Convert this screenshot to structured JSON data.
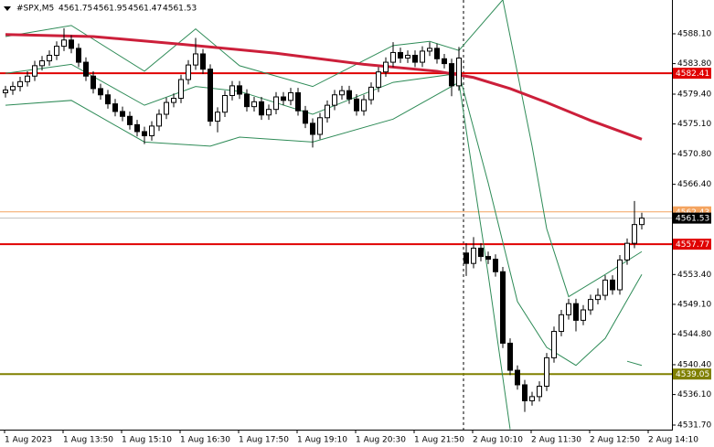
{
  "chart_data": {
    "type": "candlestick",
    "header": {
      "symbol": "#SPX,M5",
      "ohlc": [
        4561.75,
        4561.95,
        4561.47,
        4561.53
      ]
    },
    "ylim": [
      4531.04,
      4592.97
    ],
    "yticks": [
      {
        "value": 4588.1,
        "label": "4588.10"
      },
      {
        "value": 4583.8,
        "label": "4583.80"
      },
      {
        "value": 4579.4,
        "label": "4579.40"
      },
      {
        "value": 4575.1,
        "label": "4575.10"
      },
      {
        "value": 4570.8,
        "label": "4570.80"
      },
      {
        "value": 4566.4,
        "label": "4566.40"
      },
      {
        "value": 4553.4,
        "label": "4553.40"
      },
      {
        "value": 4549.1,
        "label": "4549.10"
      },
      {
        "value": 4544.8,
        "label": "4544.80"
      },
      {
        "value": 4540.4,
        "label": "4540.40"
      },
      {
        "value": 4536.1,
        "label": "4536.10"
      },
      {
        "value": 4531.7,
        "label": "4531.70"
      }
    ],
    "x_labels": [
      "1 Aug 2023",
      "1 Aug 13:50",
      "1 Aug 15:10",
      "1 Aug 16:30",
      "1 Aug 17:50",
      "1 Aug 19:10",
      "1 Aug 20:30",
      "1 Aug 21:50",
      "2 Aug 10:10",
      "2 Aug 11:30",
      "2 Aug 12:50",
      "2 Aug 14:10"
    ],
    "up_color": "#ffffff",
    "down_color": "#000000",
    "outline_color": "#000000",
    "candles": [
      [
        4579.6,
        4580.6,
        4578.9,
        4580.0
      ],
      [
        4580.0,
        4581.2,
        4579.3,
        4580.5
      ],
      [
        4580.5,
        4581.9,
        4579.8,
        4581.2
      ],
      [
        4581.2,
        4582.7,
        4580.5,
        4582.0
      ],
      [
        4582.0,
        4584.2,
        4581.3,
        4583.5
      ],
      [
        4583.5,
        4584.9,
        4582.8,
        4584.2
      ],
      [
        4584.2,
        4585.7,
        4583.5,
        4585.0
      ],
      [
        4585.0,
        4587.0,
        4584.3,
        4586.3
      ],
      [
        4586.3,
        4588.9,
        4585.6,
        4587.2
      ],
      [
        4587.2,
        4587.9,
        4585.3,
        4586.0
      ],
      [
        4586.0,
        4586.7,
        4583.3,
        4584.0
      ],
      [
        4584.0,
        4584.7,
        4581.3,
        4582.0
      ],
      [
        4582.0,
        4582.7,
        4579.5,
        4580.2
      ],
      [
        4580.2,
        4580.9,
        4578.6,
        4579.3
      ],
      [
        4579.3,
        4580.0,
        4577.3,
        4578.0
      ],
      [
        4578.0,
        4578.7,
        4576.2,
        4576.9
      ],
      [
        4576.9,
        4577.6,
        4575.5,
        4576.2
      ],
      [
        4576.2,
        4576.9,
        4574.3,
        4575.0
      ],
      [
        4575.0,
        4575.7,
        4573.3,
        4574.0
      ],
      [
        4574.0,
        4574.7,
        4572.2,
        4573.4
      ],
      [
        4573.4,
        4575.5,
        4572.7,
        4574.8
      ],
      [
        4574.8,
        4577.2,
        4574.1,
        4576.5
      ],
      [
        4576.5,
        4578.9,
        4575.8,
        4578.2
      ],
      [
        4578.2,
        4579.5,
        4577.5,
        4578.8
      ],
      [
        4578.8,
        4582.2,
        4578.1,
        4581.5
      ],
      [
        4581.5,
        4584.3,
        4580.8,
        4583.6
      ],
      [
        4583.6,
        4587.5,
        4582.9,
        4585.2
      ],
      [
        4585.2,
        4585.9,
        4582.3,
        4583.0
      ],
      [
        4583.0,
        4583.7,
        4574.8,
        4575.5
      ],
      [
        4575.5,
        4577.5,
        4573.9,
        4576.8
      ],
      [
        4576.8,
        4579.9,
        4576.1,
        4579.2
      ],
      [
        4579.2,
        4581.3,
        4578.5,
        4580.6
      ],
      [
        4580.6,
        4581.3,
        4578.7,
        4579.4
      ],
      [
        4579.4,
        4580.1,
        4576.9,
        4577.6
      ],
      [
        4577.6,
        4579.0,
        4576.9,
        4578.3
      ],
      [
        4578.3,
        4579.0,
        4575.7,
        4576.4
      ],
      [
        4576.4,
        4577.9,
        4575.7,
        4577.2
      ],
      [
        4577.2,
        4579.7,
        4576.5,
        4579.0
      ],
      [
        4579.0,
        4579.7,
        4577.8,
        4578.5
      ],
      [
        4578.5,
        4580.3,
        4577.8,
        4579.6
      ],
      [
        4579.6,
        4580.3,
        4576.3,
        4577.0
      ],
      [
        4577.0,
        4577.7,
        4574.5,
        4575.2
      ],
      [
        4575.2,
        4575.9,
        4571.7,
        4573.6
      ],
      [
        4573.6,
        4576.7,
        4572.9,
        4576.0
      ],
      [
        4576.0,
        4578.5,
        4575.3,
        4577.8
      ],
      [
        4577.8,
        4580.0,
        4577.1,
        4579.3
      ],
      [
        4579.3,
        4580.6,
        4578.6,
        4579.9
      ],
      [
        4579.9,
        4580.6,
        4578.0,
        4578.7
      ],
      [
        4578.7,
        4579.4,
        4576.3,
        4577.0
      ],
      [
        4577.0,
        4579.3,
        4576.3,
        4578.6
      ],
      [
        4578.6,
        4581.1,
        4577.9,
        4580.4
      ],
      [
        4580.4,
        4583.3,
        4579.7,
        4582.6
      ],
      [
        4582.6,
        4584.7,
        4581.9,
        4584.0
      ],
      [
        4584.0,
        4586.9,
        4583.3,
        4585.4
      ],
      [
        4585.4,
        4586.1,
        4583.9,
        4584.6
      ],
      [
        4584.6,
        4585.7,
        4583.9,
        4585.0
      ],
      [
        4585.0,
        4585.7,
        4583.3,
        4584.0
      ],
      [
        4584.0,
        4586.3,
        4583.3,
        4585.6
      ],
      [
        4585.6,
        4586.9,
        4584.9,
        4586.0
      ],
      [
        4586.0,
        4586.7,
        4583.8,
        4584.5
      ],
      [
        4584.5,
        4585.2,
        4583.1,
        4583.8
      ],
      [
        4583.8,
        4584.5,
        4579.1,
        4580.6
      ],
      [
        4580.6,
        4586.2,
        4579.9,
        4584.6
      ],
      [
        4556.5,
        4557.9,
        4553.2,
        4555.0
      ],
      [
        4555.0,
        4558.8,
        4554.3,
        4557.2
      ],
      [
        4557.2,
        4557.9,
        4555.3,
        4556.0
      ],
      [
        4556.0,
        4556.7,
        4554.9,
        4555.6
      ],
      [
        4555.6,
        4556.3,
        4553.1,
        4553.8
      ],
      [
        4553.8,
        4554.5,
        4542.8,
        4543.5
      ],
      [
        4543.5,
        4544.2,
        4538.9,
        4539.6
      ],
      [
        4539.6,
        4540.3,
        4536.8,
        4537.5
      ],
      [
        4537.5,
        4538.2,
        4533.6,
        4535.2
      ],
      [
        4535.2,
        4536.5,
        4534.5,
        4535.8
      ],
      [
        4535.8,
        4538.0,
        4535.1,
        4537.3
      ],
      [
        4537.3,
        4542.1,
        4536.6,
        4541.4
      ],
      [
        4541.4,
        4545.9,
        4540.7,
        4545.2
      ],
      [
        4545.2,
        4548.3,
        4544.5,
        4547.6
      ],
      [
        4547.6,
        4549.9,
        4546.9,
        4549.2
      ],
      [
        4549.2,
        4549.9,
        4545.2,
        4546.8
      ],
      [
        4546.8,
        4549.0,
        4546.1,
        4548.3
      ],
      [
        4548.3,
        4550.5,
        4547.6,
        4549.8
      ],
      [
        4549.8,
        4551.4,
        4549.1,
        4550.4
      ],
      [
        4550.4,
        4553.3,
        4549.7,
        4552.6
      ],
      [
        4552.6,
        4553.3,
        4550.5,
        4551.2
      ],
      [
        4551.2,
        4556.2,
        4550.5,
        4555.5
      ],
      [
        4555.5,
        4558.6,
        4554.8,
        4557.9
      ],
      [
        4557.9,
        4564.0,
        4557.2,
        4560.6
      ],
      [
        4560.6,
        4562.3,
        4559.9,
        4561.53
      ]
    ],
    "lines": [
      {
        "color": "#2e8b57",
        "width": 1,
        "x": [
          0,
          9,
          19,
          26,
          32,
          42,
          53,
          58,
          62,
          68,
          72,
          74,
          77,
          82,
          87
        ],
        "values": [
          4587.7,
          4589.3,
          4582.7,
          4588.8,
          4583.5,
          4580.5,
          4586.4,
          4587.0,
          4585.7,
          4593.0,
          4571.9,
          4560.0,
          4550.2,
          4553.4,
          4556.7
        ]
      },
      {
        "color": "#2e8b57",
        "width": 1,
        "x": [
          0,
          9,
          19,
          26,
          32,
          42,
          53,
          62,
          66,
          70,
          74,
          78,
          82,
          87
        ],
        "values": [
          4582.4,
          4583.7,
          4577.8,
          4580.5,
          4579.8,
          4576.5,
          4581.1,
          4582.4,
          4566.6,
          4549.5,
          4542.9,
          4540.3,
          4544.2,
          4553.4
        ]
      },
      {
        "color": "#2e8b57",
        "width": 1,
        "x": [
          0,
          9,
          19,
          28,
          32,
          42,
          53,
          62,
          66,
          69,
          70,
          85,
          87
        ],
        "values": [
          4577.8,
          4578.5,
          4572.5,
          4571.9,
          4573.2,
          4572.5,
          4575.8,
          4581.1,
          4553.4,
          4531.1,
          null,
          4540.9,
          4540.3
        ]
      },
      {
        "color": "#cc1f3a",
        "width": 3,
        "x": [
          0,
          12,
          24,
          37,
          49,
          59,
          64,
          69,
          74,
          80,
          87
        ],
        "values": [
          4588.0,
          4587.7,
          4586.6,
          4585.3,
          4583.7,
          4582.7,
          4581.8,
          4580.2,
          4578.2,
          4575.6,
          4572.9
        ]
      }
    ],
    "levels": [
      {
        "value": 4582.41,
        "color": "#e00000",
        "box_color": "#e00000"
      },
      {
        "value": 4562.43,
        "color": "#f4a460",
        "box_color": "#f4a460"
      },
      {
        "value": 4561.53,
        "color": "#c0c0c0",
        "box_color": "#000000"
      },
      {
        "value": 4557.77,
        "color": "#e00000",
        "box_color": "#e00000"
      },
      {
        "value": 4539.05,
        "color": "#808000",
        "box_color": "#808000"
      }
    ]
  }
}
